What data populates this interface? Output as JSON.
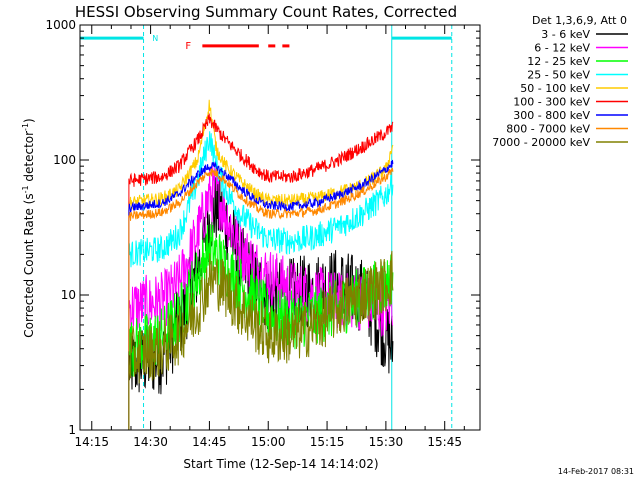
{
  "chart_data": {
    "type": "line",
    "title": "HESSI Observing Summary Count Rates, Corrected",
    "xlabel": "Start Time (12-Sep-14 14:14:02)",
    "ylabel_main": "Corrected Count Rate (s",
    "ylabel_sup1": "-1",
    "ylabel_mid": " detector",
    "ylabel_sup2": "-1",
    "ylabel_end": ")",
    "y_scale": "log",
    "ylim": [
      1,
      1000
    ],
    "xlim_minutes": [
      "14:12",
      "15:54"
    ],
    "x_ticks": [
      {
        "t": 14.25,
        "label": "14:15"
      },
      {
        "t": 14.5,
        "label": "14:30"
      },
      {
        "t": 14.75,
        "label": "14:45"
      },
      {
        "t": 15.0,
        "label": "15:00"
      },
      {
        "t": 15.25,
        "label": "15:15"
      },
      {
        "t": 15.5,
        "label": "15:30"
      },
      {
        "t": 15.75,
        "label": "15:45"
      }
    ],
    "y_ticks": [
      {
        "v": 1,
        "label": "1"
      },
      {
        "v": 10,
        "label": "10"
      },
      {
        "v": 100,
        "label": "100"
      },
      {
        "v": 1000,
        "label": "1000"
      }
    ],
    "grid": false,
    "legend_placement": "outside-right",
    "legend_header": "Det 1,3,6,9, Att 0",
    "series": [
      {
        "name": "3 - 6 keV",
        "color": "#000000",
        "x": [
          14.408,
          14.55,
          14.62,
          14.7,
          14.75,
          14.78,
          14.82,
          14.88,
          14.95,
          15.0,
          15.1,
          15.2,
          15.3,
          15.4,
          15.5,
          15.53
        ],
        "y": [
          3,
          3.5,
          6,
          15,
          35,
          45,
          35,
          18,
          12,
          10,
          10,
          11,
          12,
          10,
          5,
          4
        ]
      },
      {
        "name": "6 - 12 keV",
        "color": "#ff00ff",
        "x": [
          14.408,
          14.55,
          14.62,
          14.7,
          14.75,
          14.78,
          14.82,
          14.88,
          14.95,
          15.0,
          15.1,
          15.2,
          15.3,
          15.4,
          15.5,
          15.53
        ],
        "y": [
          8,
          9,
          12,
          28,
          55,
          58,
          40,
          22,
          16,
          14,
          11,
          10,
          9,
          9,
          8,
          9
        ]
      },
      {
        "name": "12 - 25 keV",
        "color": "#00ff00",
        "x": [
          14.408,
          14.55,
          14.62,
          14.7,
          14.75,
          14.78,
          14.82,
          14.88,
          14.95,
          15.0,
          15.1,
          15.2,
          15.3,
          15.4,
          15.5,
          15.53
        ],
        "y": [
          4,
          5,
          7,
          14,
          22,
          20,
          16,
          12,
          9,
          7,
          6.5,
          7,
          8,
          10,
          12,
          14
        ]
      },
      {
        "name": "25 - 50 keV",
        "color": "#00ffff",
        "x": [
          14.408,
          14.55,
          14.62,
          14.7,
          14.75,
          14.78,
          14.82,
          14.88,
          14.95,
          15.0,
          15.1,
          15.2,
          15.3,
          15.4,
          15.5,
          15.53
        ],
        "y": [
          20,
          22,
          28,
          70,
          150,
          90,
          60,
          40,
          30,
          26,
          25,
          27,
          32,
          40,
          55,
          70
        ]
      },
      {
        "name": "50 - 100 keV",
        "color": "#ffcc00",
        "x": [
          14.408,
          14.55,
          14.62,
          14.7,
          14.75,
          14.78,
          14.82,
          14.88,
          14.95,
          15.0,
          15.1,
          15.2,
          15.3,
          15.4,
          15.5,
          15.53
        ],
        "y": [
          48,
          52,
          60,
          100,
          260,
          120,
          90,
          70,
          55,
          50,
          50,
          52,
          58,
          65,
          85,
          130
        ]
      },
      {
        "name": "100 - 300 keV",
        "color": "#ff0000",
        "x": [
          14.408,
          14.55,
          14.62,
          14.7,
          14.75,
          14.78,
          14.82,
          14.88,
          14.95,
          15.0,
          15.1,
          15.2,
          15.3,
          15.4,
          15.5,
          15.53
        ],
        "y": [
          70,
          75,
          90,
          140,
          200,
          170,
          140,
          110,
          85,
          75,
          75,
          85,
          100,
          125,
          160,
          175
        ]
      },
      {
        "name": "300 - 800 keV",
        "color": "#0000ff",
        "x": [
          14.408,
          14.55,
          14.62,
          14.7,
          14.75,
          14.78,
          14.82,
          14.88,
          14.95,
          15.0,
          15.1,
          15.2,
          15.3,
          15.4,
          15.5,
          15.53
        ],
        "y": [
          44,
          48,
          56,
          78,
          90,
          88,
          78,
          62,
          50,
          46,
          45,
          48,
          55,
          65,
          85,
          95
        ]
      },
      {
        "name": "800 - 7000 keV",
        "color": "#ff8800",
        "x": [
          14.408,
          14.55,
          14.62,
          14.7,
          14.75,
          14.78,
          14.82,
          14.88,
          14.95,
          15.0,
          15.1,
          15.2,
          15.3,
          15.4,
          15.5,
          15.53
        ],
        "y": [
          38,
          41,
          48,
          68,
          82,
          80,
          70,
          55,
          44,
          40,
          40,
          42,
          48,
          58,
          75,
          85
        ]
      },
      {
        "name": "7000 - 20000 keV",
        "color": "#808000",
        "x": [
          14.408,
          14.55,
          14.62,
          14.7,
          14.75,
          14.78,
          14.82,
          14.88,
          14.95,
          15.0,
          15.1,
          15.2,
          15.3,
          15.4,
          15.5,
          15.53
        ],
        "y": [
          3.5,
          4,
          5,
          8,
          13,
          13,
          11,
          8,
          6,
          5,
          5,
          6,
          8,
          10,
          12,
          14
        ]
      }
    ],
    "annotations": {
      "cyan_bars_y": 800,
      "cyan_bar_segments": [
        [
          14.2,
          14.47
        ],
        [
          15.525,
          15.78
        ]
      ],
      "cyan_dashed_verticals": [
        14.47,
        15.78
      ],
      "cyan_solid_verticals": [
        15.525
      ],
      "n_label": "N",
      "n_label_t": 14.52,
      "f_label": "F",
      "f_label_t": 14.66,
      "red_bar_y": 700,
      "red_bar_segments": [
        [
          14.72,
          14.96
        ],
        [
          15.0,
          15.03
        ],
        [
          15.06,
          15.09
        ]
      ]
    },
    "footer_date": "14-Feb-2017 08:31"
  }
}
